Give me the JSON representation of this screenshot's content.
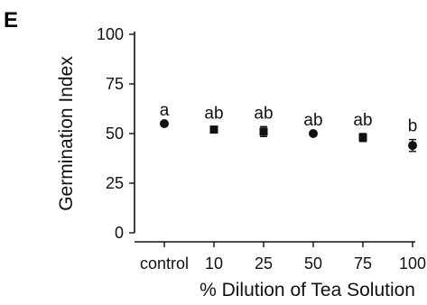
{
  "panel_label": "E",
  "chart_data": {
    "type": "scatter",
    "xlabel": "% Dilution of Tea Solution",
    "ylabel": "Germination Index",
    "categories": [
      "control",
      "10",
      "25",
      "50",
      "75",
      "100"
    ],
    "values": [
      55,
      52,
      51,
      50,
      48,
      44
    ],
    "errors": [
      0,
      1.5,
      2.5,
      0,
      2,
      3
    ],
    "markers": [
      "circle",
      "square",
      "square",
      "circle",
      "square",
      "circle"
    ],
    "annotations": [
      "a",
      "ab",
      "ab",
      "ab",
      "ab",
      "b"
    ],
    "ylim": [
      0,
      100
    ],
    "yticks": [
      0,
      25,
      50,
      75,
      100
    ],
    "grid": false
  }
}
